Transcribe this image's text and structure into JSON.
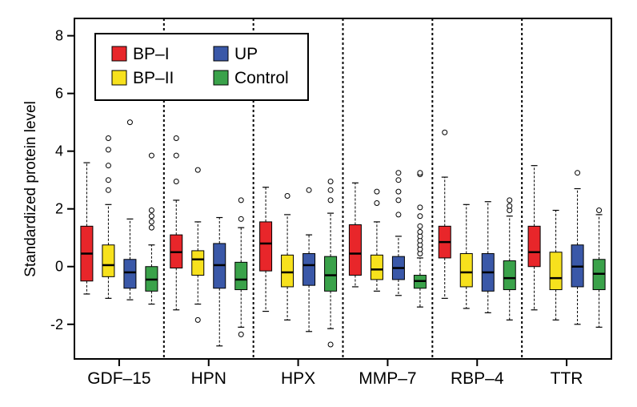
{
  "chart_data": {
    "type": "boxplot",
    "title": "",
    "xlabel": "",
    "ylabel": "Standardized protein level",
    "ylim": [
      -3.2,
      8.6
    ],
    "yticks": [
      -2,
      0,
      2,
      4,
      6,
      8
    ],
    "ytick_labels": [
      "-2",
      "0",
      "2",
      "4",
      "6",
      "8"
    ],
    "categories": [
      "GDF–15",
      "HPN",
      "HPX",
      "MMP–7",
      "RBP–4",
      "TTR"
    ],
    "legend_position": "top-left",
    "series": [
      {
        "name": "BP–I",
        "color": "#e8262a"
      },
      {
        "name": "BP–II",
        "color": "#f7e11d"
      },
      {
        "name": "UP",
        "color": "#3a58a8"
      },
      {
        "name": "Control",
        "color": "#3aa24a"
      }
    ],
    "groups": [
      {
        "category": "GDF–15",
        "boxes": [
          {
            "series": "BP–I",
            "whisker_low": -0.95,
            "q1": -0.5,
            "median": 0.45,
            "q3": 1.4,
            "whisker_high": 3.6,
            "outliers": []
          },
          {
            "series": "BP–II",
            "whisker_low": -1.1,
            "q1": -0.35,
            "median": 0.05,
            "q3": 0.75,
            "whisker_high": 2.15,
            "outliers": [
              2.65,
              3.0,
              3.5,
              4.05,
              4.45
            ]
          },
          {
            "series": "UP",
            "whisker_low": -1.15,
            "q1": -0.75,
            "median": -0.2,
            "q3": 0.25,
            "whisker_high": 1.65,
            "outliers": [
              5.0
            ]
          },
          {
            "series": "Control",
            "whisker_low": -1.3,
            "q1": -0.85,
            "median": -0.45,
            "q3": 0.0,
            "whisker_high": 0.75,
            "outliers": [
              1.35,
              1.55,
              1.75,
              1.95,
              3.85
            ]
          }
        ]
      },
      {
        "category": "HPN",
        "boxes": [
          {
            "series": "BP–I",
            "whisker_low": -1.5,
            "q1": -0.05,
            "median": 0.5,
            "q3": 1.1,
            "whisker_high": 2.3,
            "outliers": [
              2.95,
              3.85,
              4.45
            ]
          },
          {
            "series": "BP–II",
            "whisker_low": -1.3,
            "q1": -0.3,
            "median": 0.25,
            "q3": 0.55,
            "whisker_high": 1.55,
            "outliers": [
              -1.85,
              3.35
            ]
          },
          {
            "series": "UP",
            "whisker_low": -2.75,
            "q1": -0.75,
            "median": 0.05,
            "q3": 0.8,
            "whisker_high": 1.7,
            "outliers": []
          },
          {
            "series": "Control",
            "whisker_low": -2.1,
            "q1": -0.8,
            "median": -0.45,
            "q3": 0.15,
            "whisker_high": 1.35,
            "outliers": [
              -2.35,
              1.65,
              2.3
            ]
          }
        ]
      },
      {
        "category": "HPX",
        "boxes": [
          {
            "series": "BP–I",
            "whisker_low": -1.55,
            "q1": -0.15,
            "median": 0.8,
            "q3": 1.55,
            "whisker_high": 2.75,
            "outliers": []
          },
          {
            "series": "BP–II",
            "whisker_low": -1.85,
            "q1": -0.7,
            "median": -0.2,
            "q3": 0.4,
            "whisker_high": 1.8,
            "outliers": [
              2.45
            ]
          },
          {
            "series": "UP",
            "whisker_low": -2.25,
            "q1": -0.65,
            "median": 0.05,
            "q3": 0.45,
            "whisker_high": 1.1,
            "outliers": [
              2.65
            ]
          },
          {
            "series": "Control",
            "whisker_low": -2.15,
            "q1": -0.85,
            "median": -0.3,
            "q3": 0.35,
            "whisker_high": 1.85,
            "outliers": [
              -2.7,
              2.3,
              2.65,
              2.95
            ]
          }
        ]
      },
      {
        "category": "MMP–7",
        "boxes": [
          {
            "series": "BP–I",
            "whisker_low": -0.7,
            "q1": -0.3,
            "median": 0.45,
            "q3": 1.45,
            "whisker_high": 2.9,
            "outliers": []
          },
          {
            "series": "BP–II",
            "whisker_low": -0.85,
            "q1": -0.45,
            "median": -0.1,
            "q3": 0.4,
            "whisker_high": 1.55,
            "outliers": [
              2.2,
              2.6
            ]
          },
          {
            "series": "UP",
            "whisker_low": -1.0,
            "q1": -0.45,
            "median": -0.05,
            "q3": 0.35,
            "whisker_high": 1.05,
            "outliers": [
              1.8,
              2.3,
              2.6,
              3.0,
              3.25
            ]
          },
          {
            "series": "Control",
            "whisker_low": -1.4,
            "q1": -0.75,
            "median": -0.5,
            "q3": -0.3,
            "whisker_high": 0.3,
            "outliers": [
              0.45,
              0.6,
              0.75,
              0.9,
              1.05,
              1.2,
              1.4,
              1.75,
              2.05,
              3.2,
              3.25
            ]
          }
        ]
      },
      {
        "category": "RBP–4",
        "boxes": [
          {
            "series": "BP–I",
            "whisker_low": -1.1,
            "q1": 0.3,
            "median": 0.85,
            "q3": 1.4,
            "whisker_high": 3.1,
            "outliers": [
              4.65
            ]
          },
          {
            "series": "BP–II",
            "whisker_low": -1.45,
            "q1": -0.7,
            "median": -0.2,
            "q3": 0.45,
            "whisker_high": 2.15,
            "outliers": []
          },
          {
            "series": "UP",
            "whisker_low": -1.6,
            "q1": -0.85,
            "median": -0.2,
            "q3": 0.45,
            "whisker_high": 2.25,
            "outliers": []
          },
          {
            "series": "Control",
            "whisker_low": -1.85,
            "q1": -0.8,
            "median": -0.4,
            "q3": 0.2,
            "whisker_high": 1.75,
            "outliers": [
              1.95,
              2.1,
              2.3
            ]
          }
        ]
      },
      {
        "category": "TTR",
        "boxes": [
          {
            "series": "BP–I",
            "whisker_low": -1.5,
            "q1": 0.0,
            "median": 0.5,
            "q3": 1.4,
            "whisker_high": 3.5,
            "outliers": []
          },
          {
            "series": "BP–II",
            "whisker_low": -1.85,
            "q1": -0.8,
            "median": -0.4,
            "q3": 0.5,
            "whisker_high": 1.95,
            "outliers": []
          },
          {
            "series": "UP",
            "whisker_low": -2.0,
            "q1": -0.7,
            "median": 0.0,
            "q3": 0.75,
            "whisker_high": 2.7,
            "outliers": [
              3.25
            ]
          },
          {
            "series": "Control",
            "whisker_low": -2.1,
            "q1": -0.8,
            "median": -0.25,
            "q3": 0.25,
            "whisker_high": 1.8,
            "outliers": [
              1.95
            ]
          }
        ]
      }
    ]
  }
}
